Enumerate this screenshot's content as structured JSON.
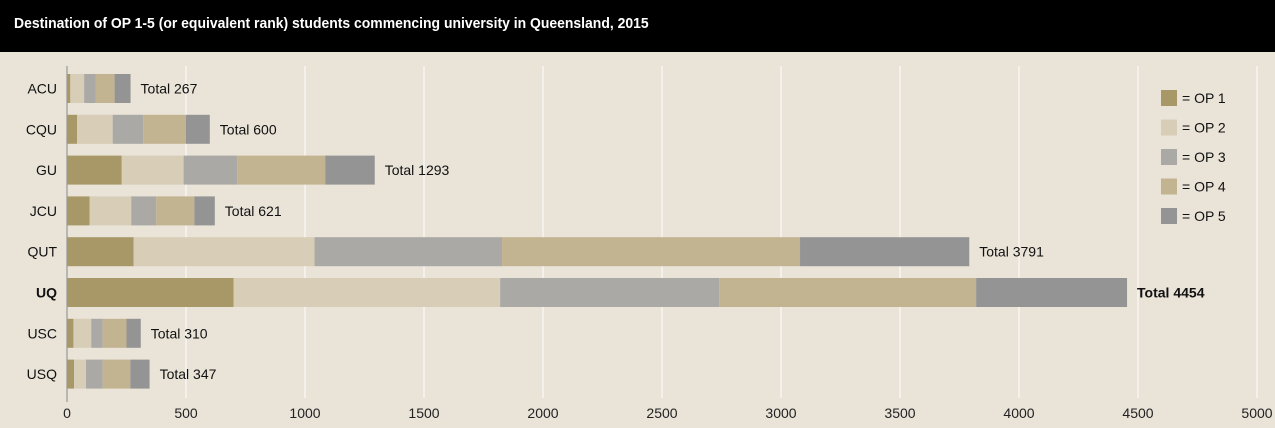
{
  "title": "Destination of OP 1-5 (or equivalent rank) students commencing university in Queensland, 2015",
  "chart_data": {
    "type": "bar",
    "orientation": "horizontal",
    "stacked": true,
    "title": "Destination of OP 1-5 (or equivalent rank) students commencing university in Queensland, 2015",
    "xlabel": "",
    "ylabel": "",
    "xlim": [
      0,
      5000
    ],
    "xticks": [
      0,
      500,
      1000,
      1500,
      2000,
      2500,
      3000,
      3500,
      4000,
      4500,
      5000
    ],
    "grid": true,
    "legend_position": "right",
    "categories": [
      "ACU",
      "CQU",
      "GU",
      "JCU",
      "QUT",
      "UQ",
      "USC",
      "USQ"
    ],
    "highlight_category": "UQ",
    "series": [
      {
        "name": "= OP 1",
        "color": "#a89868",
        "values": [
          14,
          42,
          230,
          95,
          280,
          700,
          27,
          30
        ]
      },
      {
        "name": "= OP 2",
        "color": "#d8cdb7",
        "values": [
          58,
          150,
          260,
          175,
          760,
          1120,
          75,
          50
        ]
      },
      {
        "name": "= OP 3",
        "color": "#aaa9a5",
        "values": [
          48,
          128,
          225,
          105,
          788,
          920,
          48,
          70
        ]
      },
      {
        "name": "= OP 4",
        "color": "#c3b491",
        "values": [
          80,
          180,
          370,
          160,
          1252,
          1080,
          100,
          116
        ]
      },
      {
        "name": "= OP 5",
        "color": "#959494",
        "values": [
          67,
          100,
          208,
          86,
          711,
          634,
          60,
          81
        ]
      }
    ],
    "totals": [
      "Total 267",
      "Total 600",
      "Total 1293",
      "Total 621",
      "Total 3791",
      "Total 4454",
      "Total 310",
      "Total 347"
    ]
  }
}
